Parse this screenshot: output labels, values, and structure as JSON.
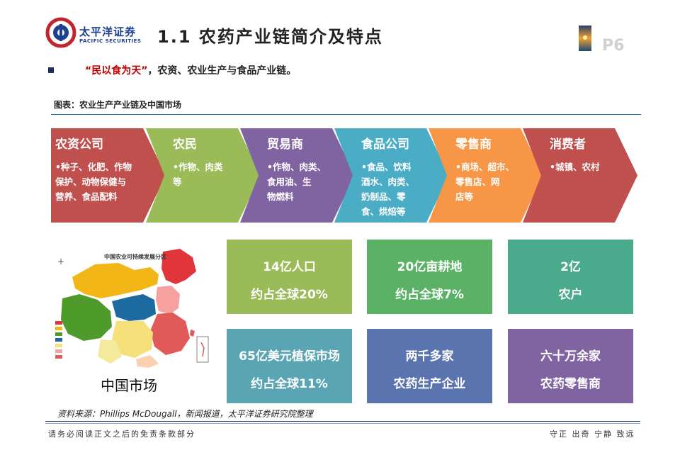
{
  "header": {
    "logo_cn": "太平洋证券",
    "logo_en": "PACIFIC SECURITIES",
    "title": "1.1 农药产业链简介及特点",
    "page_number": "P6"
  },
  "bullet": {
    "highlight": "“民以食为天”",
    "text": "，农资、农业生产与食品产业链。"
  },
  "figure_caption": "图表：农业生产产业链及中国市场",
  "chain": [
    {
      "title": "农资公司",
      "body": "•种子、化肥、作物\n保护、动物保健与\n营养、食品配料",
      "color": "#c0504d"
    },
    {
      "title": "农民",
      "body": "•作物、肉类\n等",
      "color": "#9bbb59"
    },
    {
      "title": "贸易商",
      "body": "•作物、肉类、\n食用油、生\n物燃料",
      "color": "#8064a2"
    },
    {
      "title": "食品公司",
      "body": "•食品、饮料\n酒水、肉类、\n奶制品、零\n食、烘焙等",
      "color": "#4bacc6"
    },
    {
      "title": "零售商",
      "body": "•商场、超市、\n零售店、网\n店等",
      "color": "#f79646"
    },
    {
      "title": "消费者",
      "body": "•城镇、农村",
      "color": "#c0504d"
    }
  ],
  "stats": [
    {
      "line1": "14亿人口",
      "line2": "约占全球20%",
      "color": "#9bbb59"
    },
    {
      "line1": "20亿亩耕地",
      "line2": "约占全球7%",
      "color": "#5bb166"
    },
    {
      "line1": "2亿",
      "line2": "农户",
      "color": "#4aaa8c"
    },
    {
      "line1": "65亿美元植保市场",
      "line2": "约占全球11%",
      "color": "#5aa5b4"
    },
    {
      "line1": "两千多家",
      "line2": "农药生产企业",
      "color": "#5a74b0"
    },
    {
      "line1": "六十万余家",
      "line2": "农药零售商",
      "color": "#8064a2"
    }
  ],
  "map": {
    "title": "中国农业可持续发展分区",
    "label": "中国市场"
  },
  "source": "资料来源：Phillips McDougall，新闻报道，太平洋证券研究院整理",
  "footer": {
    "left": "请务必阅读正文之后的免责条款部分",
    "right": "守正 出奇 宁静 致远"
  }
}
